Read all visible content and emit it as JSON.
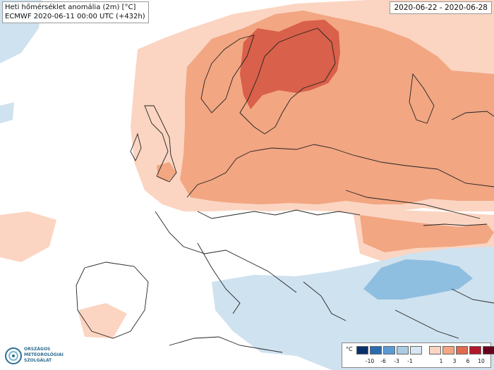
{
  "header": {
    "title": "Heti hőmérséklet anomália (2m) [°C]",
    "model_run": "ECMWF 2020-06-11 00:00 UTC (+432h)",
    "period": "2020-06-22 - 2020-06-28"
  },
  "logo": {
    "icon": "weather-service-logo-icon",
    "line1": "ORSZÁGOS",
    "line2": "METEOROLÓGIAI",
    "line3": "SZOLGÁLAT"
  },
  "legend": {
    "unit": "°C",
    "swatches": [
      {
        "color": "#08306b"
      },
      {
        "color": "#2b6cb0"
      },
      {
        "color": "#5b9bd5"
      },
      {
        "color": "#a9cce3"
      },
      {
        "color": "#d6e6f2"
      },
      {
        "color": "#fbd5c2"
      },
      {
        "color": "#f4a582"
      },
      {
        "color": "#e06b4f"
      },
      {
        "color": "#b2182b"
      },
      {
        "color": "#67001f"
      }
    ],
    "ticks": [
      "-10",
      "-6",
      "-3",
      "-1",
      "1",
      "3",
      "6",
      "10"
    ]
  },
  "colors": {
    "light_warm": "#fbd5c2",
    "warm": "#f2a682",
    "hot": "#d9604a",
    "light_cool": "#cfe2ef",
    "cool": "#8fbfe0",
    "border": "#222222"
  }
}
